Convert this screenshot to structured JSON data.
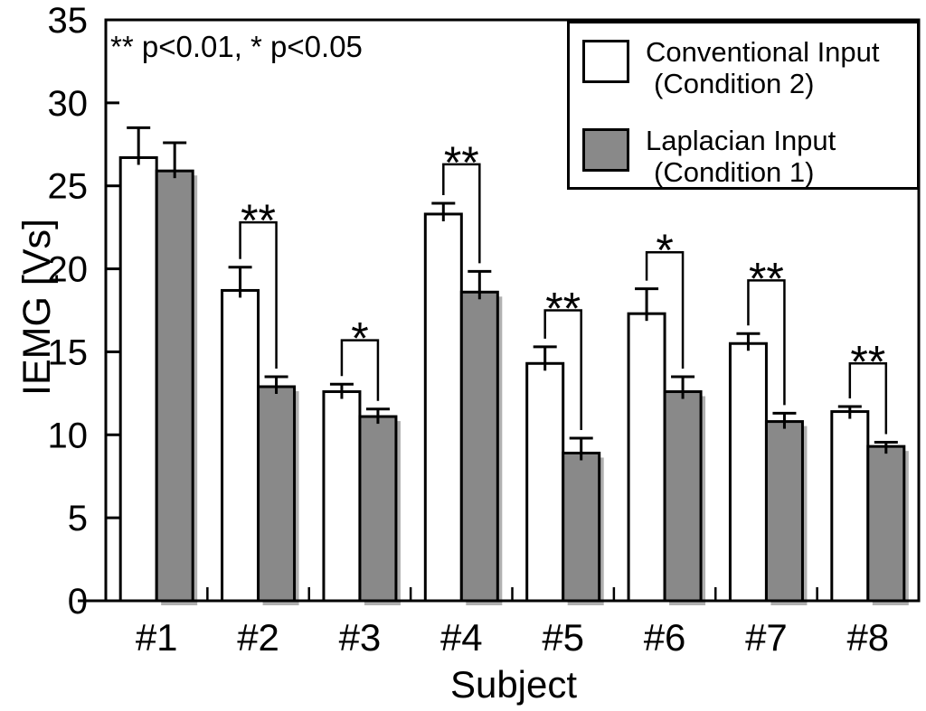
{
  "chart_data": {
    "type": "bar",
    "title": "",
    "xlabel": "Subject",
    "ylabel": "IEMG [Vs]",
    "ylim": [
      0,
      35
    ],
    "y_ticks": [
      0,
      5,
      10,
      15,
      20,
      25,
      30,
      35
    ],
    "grid": false,
    "categories": [
      "#1",
      "#2",
      "#3",
      "#4",
      "#5",
      "#6",
      "#7",
      "#8"
    ],
    "series": [
      {
        "name": "Conventional Input (Condition 2)",
        "fill": "#ffffff",
        "values": [
          26.7,
          18.7,
          12.6,
          23.3,
          14.3,
          17.3,
          15.5,
          11.4
        ],
        "errors": [
          1.8,
          1.4,
          0.45,
          0.65,
          1.0,
          1.5,
          0.6,
          0.3
        ]
      },
      {
        "name": "Laplacian Input (Condition 1)",
        "fill": "#898989",
        "values": [
          25.9,
          12.9,
          11.1,
          18.6,
          8.9,
          12.6,
          10.8,
          9.3
        ],
        "errors": [
          1.7,
          0.6,
          0.45,
          1.25,
          0.9,
          0.9,
          0.5,
          0.25
        ]
      }
    ],
    "significance": [
      {
        "category_index": 1,
        "label": "**",
        "bracket_y": 22.8
      },
      {
        "category_index": 2,
        "label": "*",
        "bracket_y": 15.7
      },
      {
        "category_index": 3,
        "label": "**",
        "bracket_y": 26.3
      },
      {
        "category_index": 4,
        "label": "**",
        "bracket_y": 17.5
      },
      {
        "category_index": 5,
        "label": "*",
        "bracket_y": 21.0
      },
      {
        "category_index": 6,
        "label": "**",
        "bracket_y": 19.3
      },
      {
        "category_index": 7,
        "label": "**",
        "bracket_y": 14.3
      }
    ],
    "annotation": "** p<0.01, * p<0.05",
    "legend": {
      "position": "top-right",
      "entries": [
        {
          "line1": "Conventional Input",
          "line2": "(Condition 2)",
          "fill": "#ffffff"
        },
        {
          "line1": "Laplacian Input",
          "line2": "(Condition 1)",
          "fill": "#898989"
        }
      ]
    },
    "colors": {
      "bar_outline": "#000000",
      "axis": "#000000",
      "laplacian_fill": "#898989",
      "laplacian_shadow": "#b0b0b0"
    }
  }
}
